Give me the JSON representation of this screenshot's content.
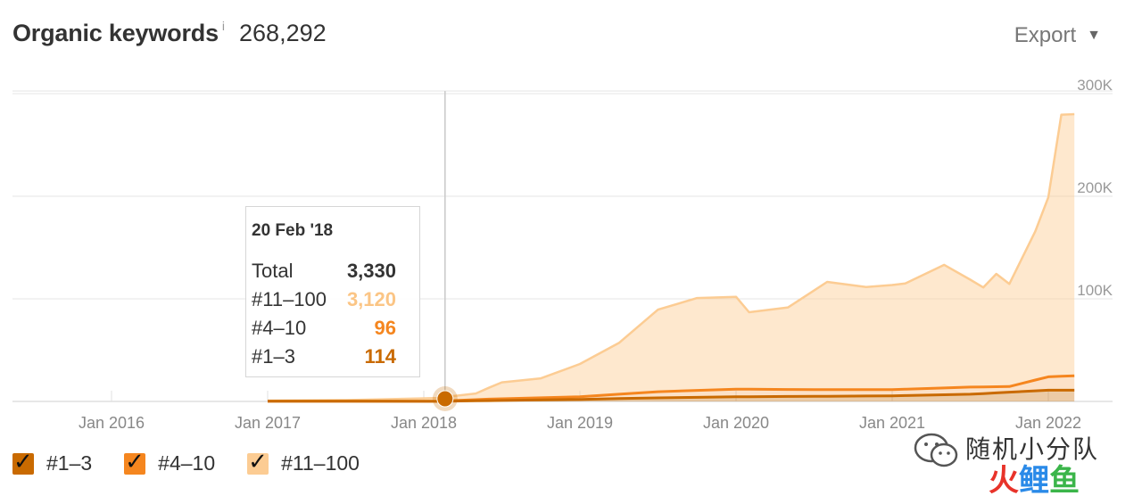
{
  "header": {
    "title": "Organic keywords",
    "info_icon": "i",
    "total": "268,292",
    "export_label": "Export",
    "export_icon": "▼"
  },
  "tooltip": {
    "date": "20 Feb '18",
    "rows": [
      {
        "label": "Total",
        "value": "3,330",
        "color": "#333333"
      },
      {
        "label": "#11–100",
        "value": "3,120",
        "color": "#fbc585"
      },
      {
        "label": "#4–10",
        "value": "96",
        "color": "#f5861f"
      },
      {
        "label": "#1–3",
        "value": "114",
        "color": "#c96a00"
      }
    ]
  },
  "legend": [
    {
      "label": "#1–3",
      "color": "#c96a00"
    },
    {
      "label": "#4–10",
      "color": "#f5861f"
    },
    {
      "label": "#11–100",
      "color": "#fccc93"
    }
  ],
  "watermark": {
    "text": "随机小分队",
    "logo_text": "火鲤鱼",
    "logo_colors": [
      "#e8332a",
      "#2a8ae8",
      "#3bb54a"
    ]
  },
  "chart_data": {
    "type": "area",
    "ylim": [
      0,
      300000
    ],
    "y_ticks": [
      {
        "value": 100000,
        "label": "100K"
      },
      {
        "value": 200000,
        "label": "200K"
      },
      {
        "value": 300000,
        "label": "300K"
      }
    ],
    "x_ticks": [
      {
        "value": "2016-01",
        "label": "Jan 2016"
      },
      {
        "value": "2017-01",
        "label": "Jan 2017"
      },
      {
        "value": "2018-01",
        "label": "Jan 2018"
      },
      {
        "value": "2019-01",
        "label": "Jan 2019"
      },
      {
        "value": "2020-01",
        "label": "Jan 2020"
      },
      {
        "value": "2021-01",
        "label": "Jan 2021"
      },
      {
        "value": "2022-01",
        "label": "Jan 2022"
      }
    ],
    "crosshair_date": "2018-02-20",
    "stacked": true,
    "series": [
      {
        "name": "#1–3",
        "color": "#c96a00",
        "points": [
          [
            "2017-01",
            200
          ],
          [
            "2017-07",
            200
          ],
          [
            "2018-02",
            114
          ],
          [
            "2018-06",
            800
          ],
          [
            "2019-01",
            2000
          ],
          [
            "2019-07",
            3500
          ],
          [
            "2020-01",
            4500
          ],
          [
            "2020-07",
            5000
          ],
          [
            "2021-01",
            5500
          ],
          [
            "2021-07",
            7000
          ],
          [
            "2021-10",
            9000
          ],
          [
            "2022-01",
            11000
          ],
          [
            "2022-03",
            11000
          ]
        ]
      },
      {
        "name": "#4–10",
        "color": "#f5861f",
        "points": [
          [
            "2017-01",
            100
          ],
          [
            "2017-07",
            100
          ],
          [
            "2018-02",
            96
          ],
          [
            "2018-06",
            1500
          ],
          [
            "2019-01",
            2500
          ],
          [
            "2019-07",
            6000
          ],
          [
            "2020-01",
            7500
          ],
          [
            "2020-07",
            6500
          ],
          [
            "2021-01",
            6000
          ],
          [
            "2021-07",
            7000
          ],
          [
            "2021-10",
            5500
          ],
          [
            "2022-01",
            13000
          ],
          [
            "2022-03",
            14000
          ]
        ]
      },
      {
        "name": "#11–100",
        "color": "#fccc93",
        "points": [
          [
            "2017-01",
            500
          ],
          [
            "2017-07",
            1000
          ],
          [
            "2018-02",
            3120
          ],
          [
            "2018-05",
            6000
          ],
          [
            "2018-07",
            16000
          ],
          [
            "2018-10",
            19000
          ],
          [
            "2019-01",
            32000
          ],
          [
            "2019-04",
            50000
          ],
          [
            "2019-07",
            80000
          ],
          [
            "2019-10",
            90000
          ],
          [
            "2020-01",
            90000
          ],
          [
            "2020-02",
            75000
          ],
          [
            "2020-05",
            80000
          ],
          [
            "2020-08",
            105000
          ],
          [
            "2020-11",
            100000
          ],
          [
            "2021-02",
            103000
          ],
          [
            "2021-05",
            120000
          ],
          [
            "2021-08",
            97000
          ],
          [
            "2021-09",
            110000
          ],
          [
            "2021-10",
            100000
          ],
          [
            "2021-12",
            145000
          ],
          [
            "2022-01",
            175000
          ],
          [
            "2022-02",
            255000
          ],
          [
            "2022-03",
            255000
          ]
        ]
      }
    ]
  }
}
